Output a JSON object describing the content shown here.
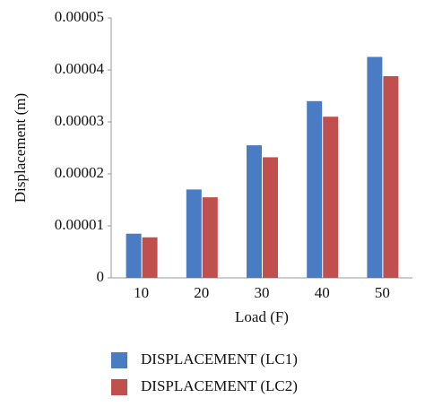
{
  "chart_data": {
    "type": "bar",
    "x_label": "Load (F)",
    "y_label": "Displacement (m)",
    "categories": [
      "10",
      "20",
      "30",
      "40",
      "50"
    ],
    "series": [
      {
        "name": "DISPLACEMENT (LC1)",
        "color": "#4a7cc4",
        "values": [
          8.5e-06,
          1.7e-05,
          2.55e-05,
          3.4e-05,
          4.25e-05
        ]
      },
      {
        "name": "DISPLACEMENT (LC2)",
        "color": "#c0504d",
        "values": [
          7.8e-06,
          1.55e-05,
          2.32e-05,
          3.1e-05,
          3.88e-05
        ]
      }
    ],
    "ylim": [
      0,
      5e-05
    ],
    "yticks": [
      0,
      {
        "value": 1e-05,
        "label": "0.00001"
      },
      {
        "value": 2e-05,
        "label": "0.00002"
      },
      {
        "value": 3e-05,
        "label": "0.00003"
      },
      {
        "value": 4e-05,
        "label": "0.00004"
      },
      {
        "value": 5e-05,
        "label": "0.00005"
      }
    ],
    "grid": false
  }
}
